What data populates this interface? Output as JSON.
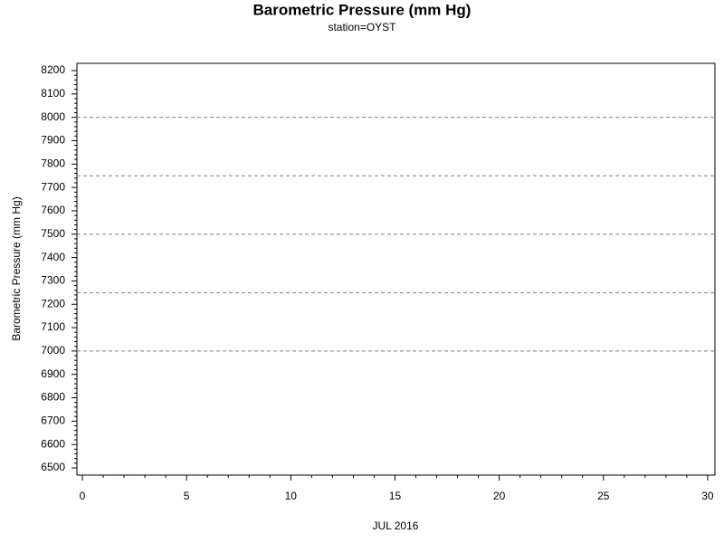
{
  "chart_data": {
    "type": "line",
    "title": "Barometric Pressure (mm Hg)",
    "subtitle": "station=OYST",
    "x_label": "JUL 2016",
    "y_label": "Barometric Pressure (mm Hg)",
    "series": [],
    "xlim": [
      -0.26,
      30.35
    ],
    "xticks": [
      0,
      5,
      10,
      15,
      20,
      25,
      30
    ],
    "ylim": [
      6469,
      8231
    ],
    "yticks": [
      6500,
      6600,
      6700,
      6800,
      6900,
      7000,
      7100,
      7200,
      7300,
      7400,
      7500,
      7600,
      7700,
      7800,
      7900,
      8000,
      8100,
      8200
    ],
    "reference_lines": [
      7000,
      7250,
      7500,
      7750,
      8000
    ],
    "reference_color": "#808080"
  }
}
